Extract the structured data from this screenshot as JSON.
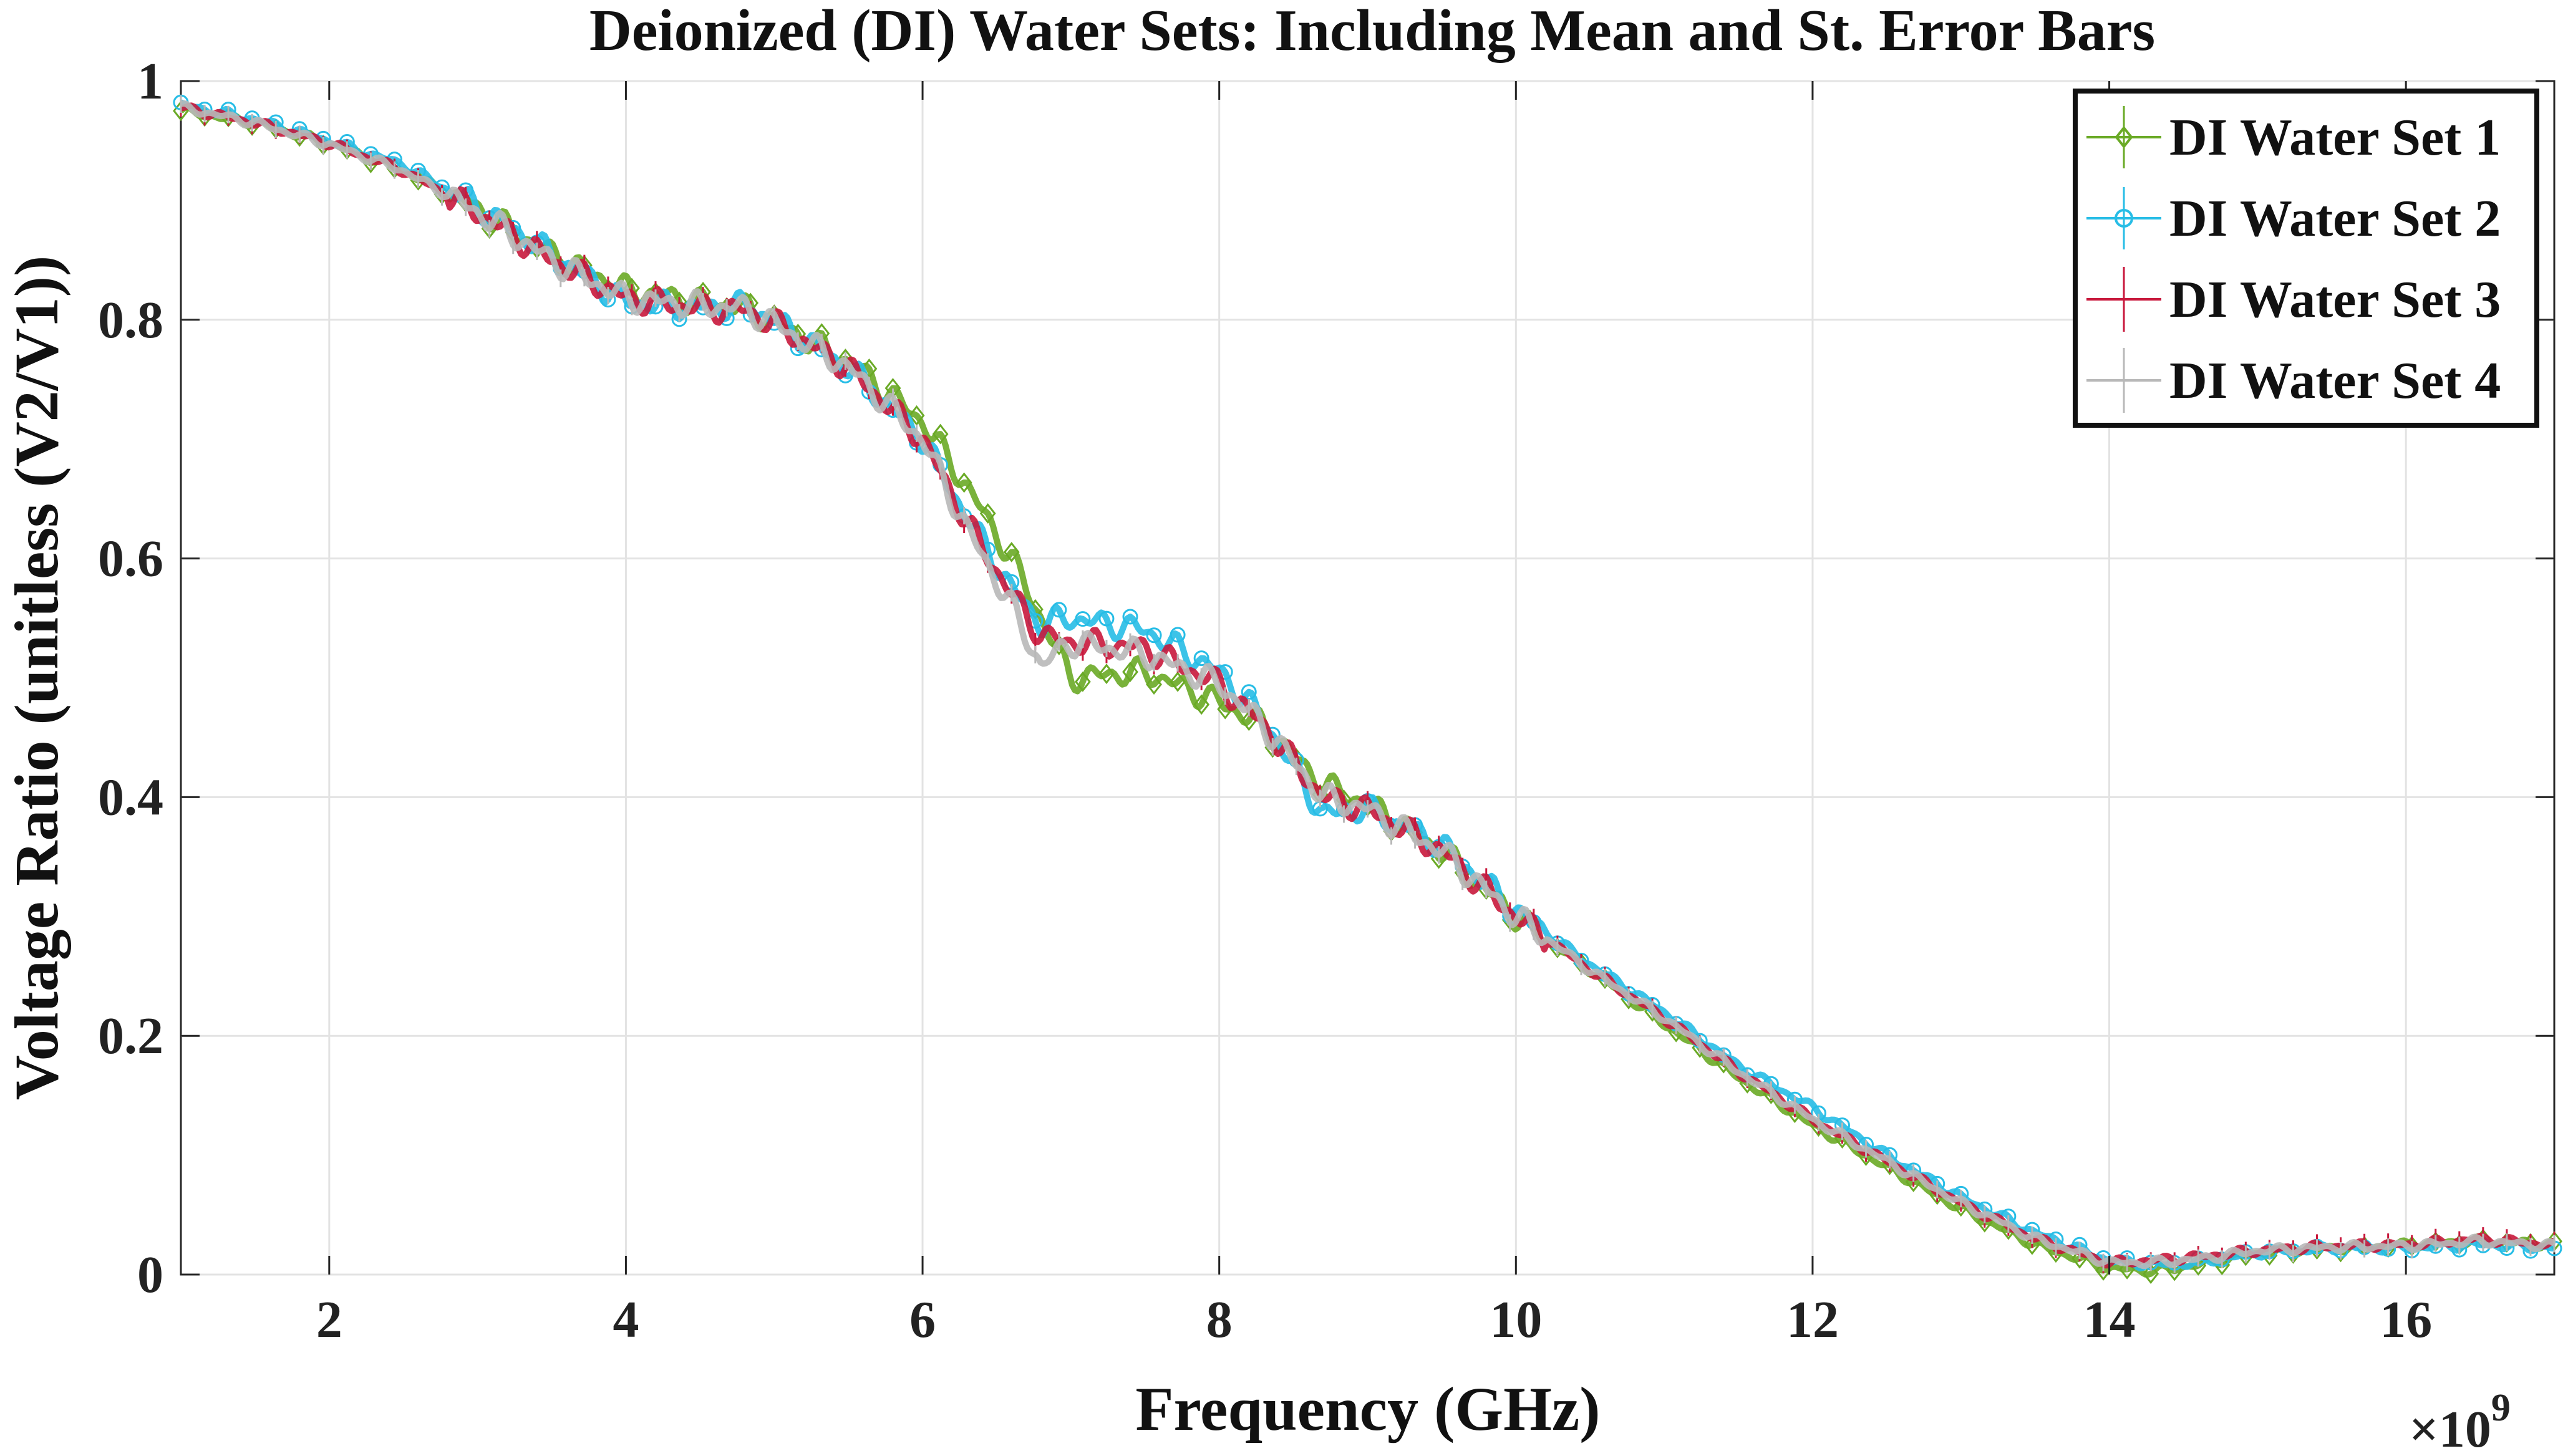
{
  "chart_data": {
    "type": "line",
    "title": "Deionized (DI) Water Sets: Including Mean and St. Error Bars",
    "xlabel": "Frequency (GHz)",
    "ylabel": "Voltage Ratio (unitless (V2/V1))",
    "x_exponent_label": "×10",
    "x_exponent_power": "9",
    "xlim": [
      1.0,
      17.0
    ],
    "ylim": [
      0,
      1
    ],
    "xticks": [
      2,
      4,
      6,
      8,
      10,
      12,
      14,
      16
    ],
    "xtick_labels": [
      "2",
      "4",
      "6",
      "8",
      "10",
      "12",
      "14",
      "16"
    ],
    "yticks": [
      0,
      0.2,
      0.4,
      0.6,
      0.8,
      1
    ],
    "ytick_labels": [
      "0",
      "0.2",
      "0.4",
      "0.6",
      "0.8",
      "1"
    ],
    "grid": true,
    "legend_position": "top-right",
    "x": [
      1.0,
      1.5,
      2.0,
      2.5,
      3.0,
      3.5,
      4.0,
      4.5,
      4.8,
      5.0,
      5.5,
      6.0,
      6.3,
      6.6,
      6.8,
      7.0,
      7.5,
      8.0,
      8.3,
      8.7,
      9.0,
      9.5,
      10.0,
      10.5,
      11.0,
      11.5,
      12.0,
      12.5,
      13.0,
      13.5,
      14.0,
      14.3,
      14.6,
      15.0,
      15.5,
      16.0,
      16.5,
      17.0
    ],
    "series": [
      {
        "name": "DI Water Set 1",
        "color": "#6aaa26",
        "marker": "diamond",
        "values": [
          0.975,
          0.965,
          0.948,
          0.925,
          0.893,
          0.855,
          0.825,
          0.815,
          0.81,
          0.798,
          0.765,
          0.715,
          0.66,
          0.6,
          0.55,
          0.5,
          0.505,
          0.48,
          0.46,
          0.41,
          0.395,
          0.355,
          0.3,
          0.255,
          0.21,
          0.165,
          0.125,
          0.09,
          0.055,
          0.025,
          0.005,
          0.003,
          0.008,
          0.018,
          0.022,
          0.025,
          0.028,
          0.025
        ]
      },
      {
        "name": "DI Water Set 2",
        "color": "#27bde6",
        "marker": "circle",
        "values": [
          0.98,
          0.968,
          0.95,
          0.93,
          0.895,
          0.855,
          0.815,
          0.81,
          0.812,
          0.8,
          0.76,
          0.7,
          0.635,
          0.575,
          0.545,
          0.55,
          0.54,
          0.505,
          0.465,
          0.385,
          0.39,
          0.36,
          0.305,
          0.26,
          0.22,
          0.175,
          0.14,
          0.1,
          0.065,
          0.035,
          0.012,
          0.008,
          0.01,
          0.018,
          0.022,
          0.022,
          0.025,
          0.022
        ]
      },
      {
        "name": "DI Water Set 3",
        "color": "#c8183c",
        "marker": "none",
        "values": [
          0.978,
          0.965,
          0.948,
          0.925,
          0.89,
          0.85,
          0.818,
          0.81,
          0.808,
          0.797,
          0.76,
          0.7,
          0.63,
          0.57,
          0.535,
          0.53,
          0.525,
          0.495,
          0.46,
          0.4,
          0.39,
          0.355,
          0.3,
          0.255,
          0.215,
          0.17,
          0.13,
          0.095,
          0.06,
          0.03,
          0.01,
          0.012,
          0.015,
          0.02,
          0.024,
          0.025,
          0.03,
          0.025
        ]
      },
      {
        "name": "DI Water Set 4",
        "color": "#b8b8b8",
        "marker": "none",
        "values": [
          0.978,
          0.965,
          0.947,
          0.925,
          0.89,
          0.85,
          0.818,
          0.812,
          0.81,
          0.797,
          0.76,
          0.7,
          0.625,
          0.56,
          0.51,
          0.53,
          0.52,
          0.495,
          0.46,
          0.4,
          0.39,
          0.355,
          0.3,
          0.255,
          0.215,
          0.17,
          0.13,
          0.095,
          0.06,
          0.03,
          0.01,
          0.01,
          0.013,
          0.02,
          0.023,
          0.024,
          0.028,
          0.024
        ]
      }
    ]
  }
}
